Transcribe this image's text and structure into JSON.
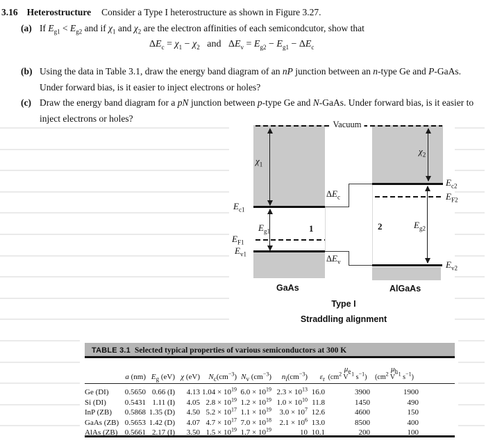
{
  "problem": {
    "number": "3.16",
    "title": "Heterostructure",
    "intro": "Consider a Type I heterostructure as shown in Figure 3.27.",
    "equation": "Δ*E*_{c} = *χ*_{1} − *χ*_{2}  and  Δ*E*_{v} = *E*_{g2} − *E*_{g1} − Δ*E*_{c}",
    "parts": [
      {
        "label": "(a)",
        "text": "If *E*_{g1} < *E*_{g2} and if *χ*_{1} and *χ*_{2} are the electron affinities of each semicondcutor, show that"
      },
      {
        "label": "(b)",
        "text": "Using the data in Table 3.1, draw the energy band diagram of an *nP* junction between an *n*-type Ge and *P*-GaAs. Under forward bias, is it easier to inject electrons or holes?"
      },
      {
        "label": "(c)",
        "text": "Draw the energy band diagram for a *pN* junction between *p*-type Ge and *N*-GaAs. Under forward bias, is it easier to inject electrons or holes?"
      }
    ]
  },
  "figure": {
    "vacuum": "Vacuum",
    "chi1": "*χ*_{1}",
    "chi2": "*χ*_{2}",
    "ec1": "*E*_{c1}",
    "eg1": "*E*_{g1}",
    "ef1": "*E*_{F1}",
    "ev1": "*E*_{v1}",
    "ec2": "*E*_{c2}",
    "ef2": "*E*_{F2}",
    "eg2": "*E*_{g2}",
    "ev2": "*E*_{v2}",
    "delta_ec": "Δ*E*_{c}",
    "delta_ev": "Δ*E*_{v}",
    "region1": "1",
    "region2": "2",
    "material1": "GaAs",
    "material2": "AlGaAs",
    "caption_line1": "Type I",
    "caption_line2": "Straddling alignment",
    "block_color": "#c9c9c9"
  },
  "table": {
    "tag": "TABLE 3.1",
    "caption": "Selected typical properties of various semiconductors at 300 K",
    "bar_color": "#b5b5b5",
    "headers": [
      "",
      "*a* (nm)",
      "*E*_{g} (eV)",
      "*χ* (eV)",
      "*N*_{c}(cm^{−3})",
      "*N*_{v} (cm^{−3})",
      "*n*_{i}(cm^{−3})",
      "*ε*_{r}",
      "*μ*_{e}|(cm^{2} V^{−1} s^{−1})",
      "*μ*_{h}|(cm^{2} V^{−1} s^{−1})"
    ],
    "rows": [
      [
        "Ge (DI)",
        "0.5650",
        "0.66 (I)",
        "4.13",
        "1.04 × 10^{19}",
        "6.0 × 10^{19}",
        "2.3 × 10^{13}",
        "16.0",
        "3900",
        "1900"
      ],
      [
        "Si (DI)",
        "0.5431",
        "1.11 (I)",
        "4.05",
        "2.8 × 10^{19}",
        "1.2 × 10^{19}",
        "1.0 × 10^{10}",
        "11.8",
        "1450",
        "490"
      ],
      [
        "InP (ZB)",
        "0.5868",
        "1.35 (D)",
        "4.50",
        "5.2 × 10^{17}",
        "1.1 × 10^{19}",
        "3.0 × 10^{7}",
        "12.6",
        "4600",
        "150"
      ],
      [
        "GaAs (ZB)",
        "0.5653",
        "1.42 (D)",
        "4.07",
        "4.7 × 10^{17}",
        "7.0 × 10^{18}",
        "2.1 × 10^{6}",
        "13.0",
        "8500",
        "400"
      ],
      [
        "AlAs (ZB)",
        "0.5661",
        "2.17 (I)",
        "3.50",
        "1.5 × 10^{19}",
        "1.7 × 10^{19}",
        "10",
        "10.1",
        "200",
        "100"
      ]
    ]
  }
}
